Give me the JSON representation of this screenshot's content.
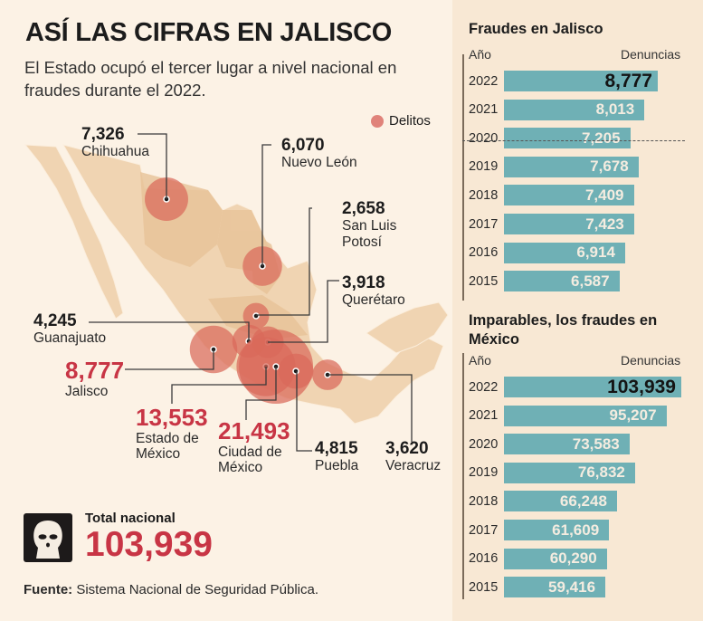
{
  "header": {
    "title": "ASÍ LAS CIFRAS EN JALISCO",
    "subtitle": "El Estado ocupó el tercer lugar a nivel nacional en fraudes durante el 2022."
  },
  "map": {
    "legend_label": "Delitos",
    "bubble_color": "#d9695a",
    "highlight_color": "#c83545",
    "states": [
      {
        "name": "Chihuahua",
        "value": "7,326",
        "highlight": false
      },
      {
        "name": "Nuevo León",
        "value": "6,070",
        "highlight": false
      },
      {
        "name": "San Luis Potosí",
        "value": "2,658",
        "highlight": false
      },
      {
        "name": "Querétaro",
        "value": "3,918",
        "highlight": false
      },
      {
        "name": "Guanajuato",
        "value": "4,245",
        "highlight": false
      },
      {
        "name": "Jalisco",
        "value": "8,777",
        "highlight": true
      },
      {
        "name": "Estado de México",
        "value": "13,553",
        "highlight": true
      },
      {
        "name": "Ciudad de México",
        "value": "21,493",
        "highlight": true
      },
      {
        "name": "Puebla",
        "value": "4,815",
        "highlight": false
      },
      {
        "name": "Veracruz",
        "value": "3,620",
        "highlight": false
      }
    ]
  },
  "total": {
    "icon": "balaclava-icon",
    "label": "Total nacional",
    "value": "103,939"
  },
  "source": {
    "label": "Fuente:",
    "text": " Sistema Nacional de Seguridad Pública."
  },
  "chart_data": [
    {
      "type": "bar",
      "title": "Fraudes en Jalisco",
      "xlabel": "Año",
      "ylabel": "Denuncias",
      "categories": [
        "2022",
        "2021",
        "2020",
        "2019",
        "2018",
        "2017",
        "2016",
        "2015"
      ],
      "values": [
        8777,
        8013,
        7205,
        7678,
        7409,
        7423,
        6914,
        6587
      ],
      "labels": [
        "8,777",
        "8,013",
        "7,205",
        "7,678",
        "7,409",
        "7,423",
        "6,914",
        "6,587"
      ],
      "orientation": "horizontal",
      "bar_color": "#6fb0b5"
    },
    {
      "type": "bar",
      "title": "Imparables, los fraudes en México",
      "xlabel": "Año",
      "ylabel": "Denuncias",
      "categories": [
        "2022",
        "2021",
        "2020",
        "2019",
        "2018",
        "2017",
        "2016",
        "2015"
      ],
      "values": [
        103939,
        95207,
        73583,
        76832,
        66248,
        61609,
        60290,
        59416
      ],
      "labels": [
        "103,939",
        "95,207",
        "73,583",
        "76,832",
        "66,248",
        "61,609",
        "60,290",
        "59,416"
      ],
      "orientation": "horizontal",
      "bar_color": "#6fb0b5"
    }
  ]
}
